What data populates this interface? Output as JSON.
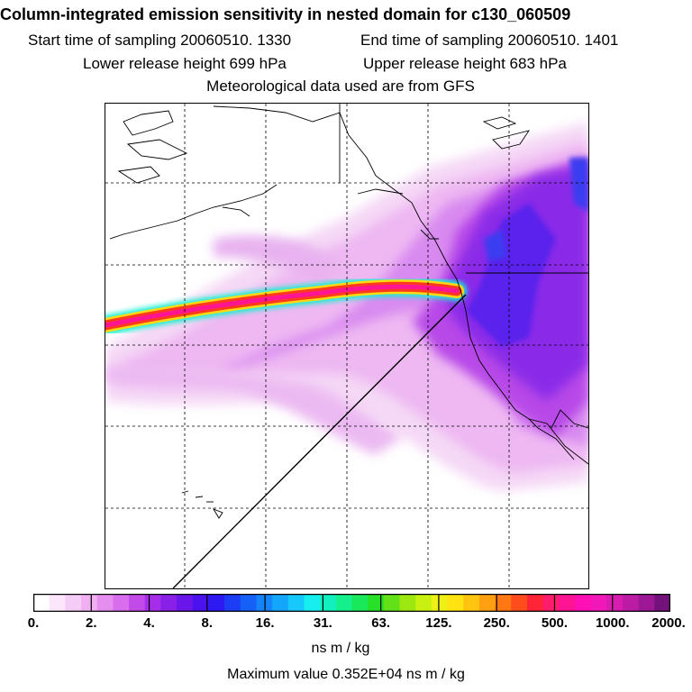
{
  "header": {
    "title": "Column-integrated emission sensitivity in nested domain for c130_060509",
    "start_time": "Start time of sampling 20060510.  1330",
    "end_time": "End time of sampling 20060510.  1401",
    "lower_release": "Lower release height  699 hPa",
    "upper_release": "Upper release height  683 hPa",
    "met_data": "Meteorological data used are from GFS"
  },
  "colorbar": {
    "colors": [
      "#ffffff",
      "#fbe6fb",
      "#f5ccf5",
      "#f0b0f2",
      "#e58ef0",
      "#d86ded",
      "#c24be8",
      "#a62ee8",
      "#8a1fe8",
      "#6a16ea",
      "#4b12ee",
      "#2d1af2",
      "#1c3df4",
      "#1560f6",
      "#1484f8",
      "#14a6fa",
      "#17c8fc",
      "#16eef0",
      "#12f0c0",
      "#16f08c",
      "#18e85a",
      "#28e028",
      "#62e018",
      "#9ce810",
      "#c8f010",
      "#eef018",
      "#ffe412",
      "#ffc410",
      "#ffa010",
      "#ff7814",
      "#ff4c1c",
      "#ff2436",
      "#ff1c6c",
      "#ff1494",
      "#ff10b4",
      "#f018b8",
      "#d81cb0",
      "#bc1ca4",
      "#9c1894",
      "#74127c"
    ],
    "tick_labels": [
      "0.",
      "2.",
      "4.",
      "8.",
      "16.",
      "31.",
      "63.",
      "125.",
      "250.",
      "500.",
      "1000.",
      "2000."
    ],
    "units": "ns m / kg",
    "max_value_text": "Maximum value  0.352E+04 ns m / kg"
  }
}
